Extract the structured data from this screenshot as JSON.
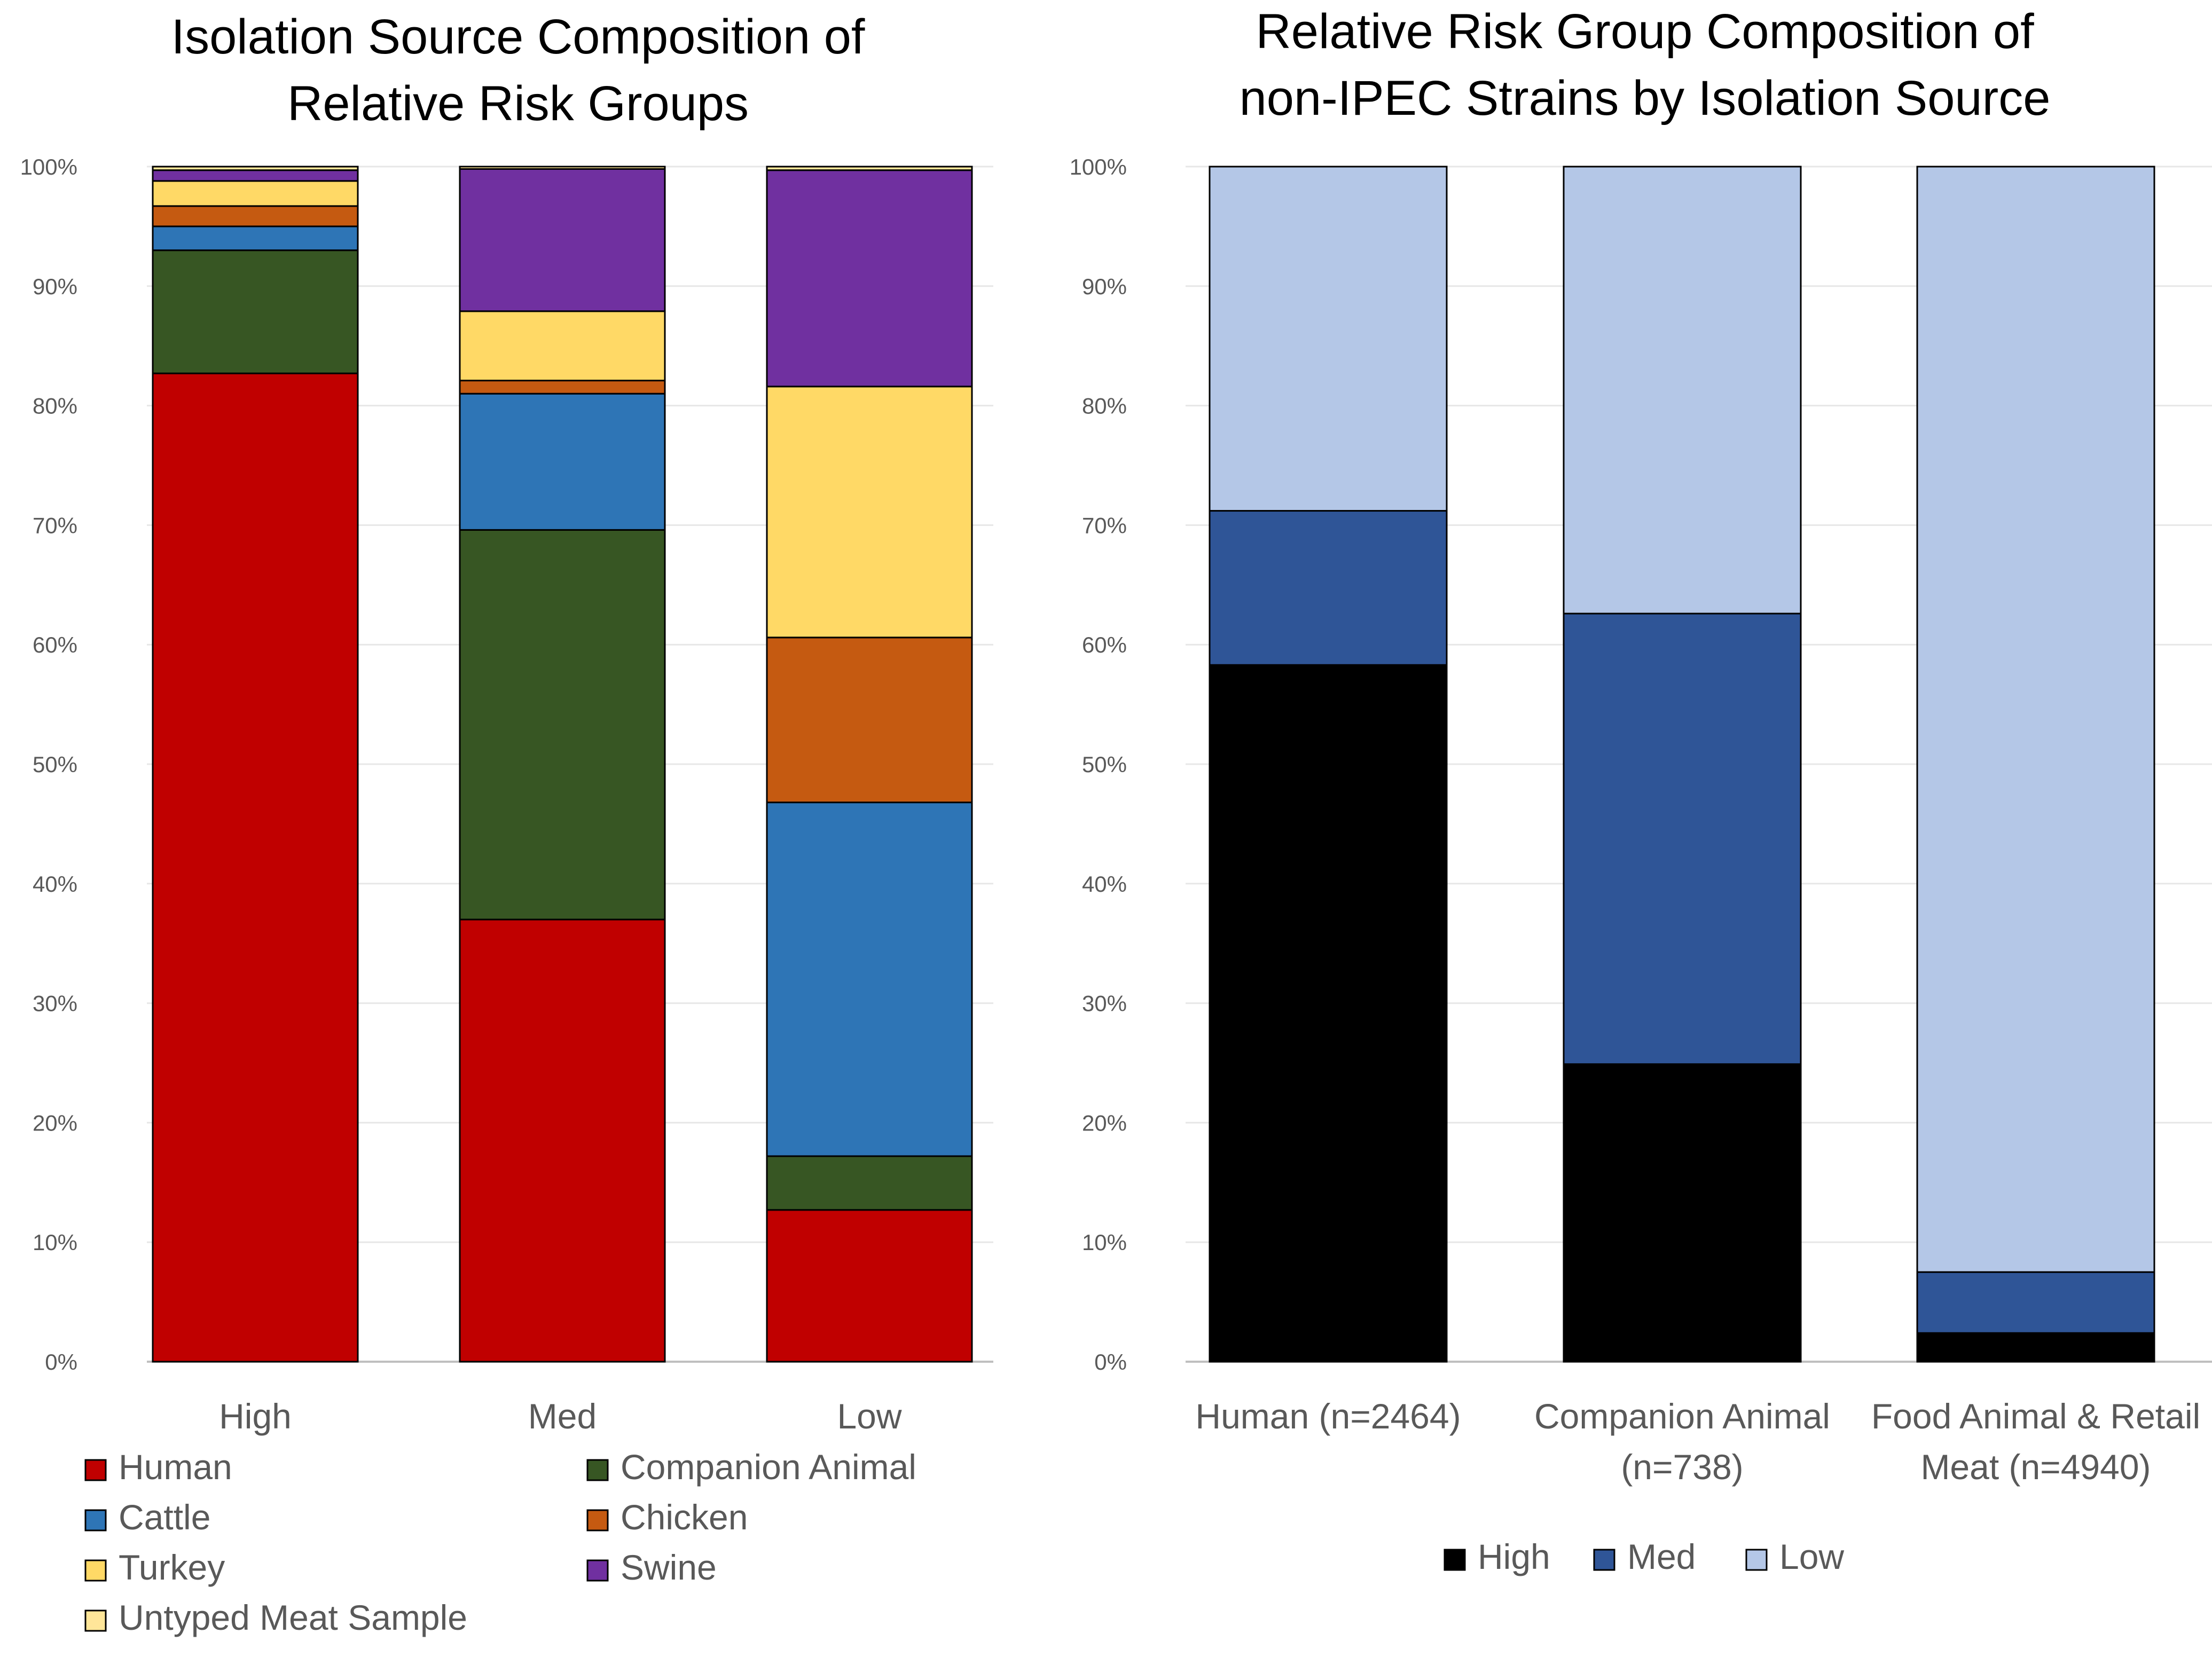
{
  "chart_data": [
    {
      "type": "bar",
      "stacked": true,
      "title_lines": [
        "Isolation Source Composition of",
        "Relative Risk Groups"
      ],
      "categories": [
        "High",
        "Med",
        "Low"
      ],
      "yticks": [
        "0%",
        "10%",
        "20%",
        "30%",
        "40%",
        "50%",
        "60%",
        "70%",
        "80%",
        "90%",
        "100%"
      ],
      "ylim": [
        0,
        100
      ],
      "grid": true,
      "legend_position": "bottom",
      "series": [
        {
          "name": "Human",
          "color": "#C00000",
          "values": [
            82.7,
            37.0,
            12.7
          ]
        },
        {
          "name": "Companion Animal",
          "color": "#375623",
          "values": [
            10.3,
            32.6,
            4.5
          ]
        },
        {
          "name": "Cattle",
          "color": "#2E75B6",
          "values": [
            2.0,
            11.4,
            29.6
          ]
        },
        {
          "name": "Chicken",
          "color": "#C55A11",
          "values": [
            1.7,
            1.1,
            13.8
          ]
        },
        {
          "name": "Turkey",
          "color": "#FFD966",
          "values": [
            2.1,
            5.8,
            21.0
          ]
        },
        {
          "name": "Swine",
          "color": "#7030A0",
          "values": [
            0.9,
            11.9,
            18.1
          ]
        },
        {
          "name": "Untyped Meat Sample",
          "color": "#FFE699",
          "values": [
            0.3,
            0.2,
            0.3
          ]
        }
      ]
    },
    {
      "type": "bar",
      "stacked": true,
      "title_lines": [
        "Relative Risk Group Composition of",
        "non-IPEC Strains by Isolation Source"
      ],
      "categories": [
        [
          "Human (n=2464)"
        ],
        [
          "Companion Animal",
          "(n=738)"
        ],
        [
          "Food Animal & Retail",
          "Meat (n=4940)"
        ]
      ],
      "yticks": [
        "0%",
        "10%",
        "20%",
        "30%",
        "40%",
        "50%",
        "60%",
        "70%",
        "80%",
        "90%",
        "100%"
      ],
      "ylim": [
        0,
        100
      ],
      "grid": true,
      "legend_position": "bottom",
      "series": [
        {
          "name": "High",
          "color": "#000000",
          "values": [
            58.3,
            24.9,
            2.4
          ]
        },
        {
          "name": "Med",
          "color": "#2F5597",
          "values": [
            12.9,
            37.7,
            5.1
          ]
        },
        {
          "name": "Low",
          "color": "#B4C7E7",
          "values": [
            28.8,
            37.4,
            92.5
          ]
        }
      ]
    }
  ]
}
